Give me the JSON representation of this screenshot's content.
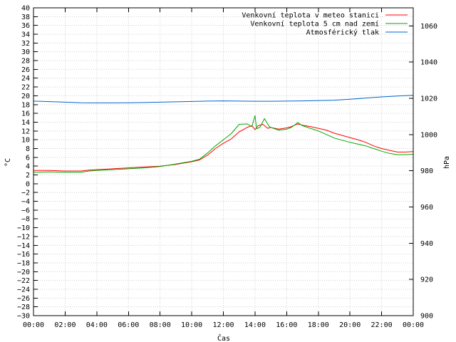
{
  "chart_data": {
    "type": "line",
    "xlabel": "Čas",
    "ylabel_left": "°C",
    "ylabel_right": "hPa",
    "grid": true,
    "legend_position": "top-right",
    "x_ticks": [
      "00:00",
      "02:00",
      "04:00",
      "06:00",
      "08:00",
      "10:00",
      "12:00",
      "14:00",
      "16:00",
      "18:00",
      "20:00",
      "22:00",
      "00:00"
    ],
    "xlim_hours": [
      0,
      24
    ],
    "ylim_left": [
      -30,
      40
    ],
    "y_step_left": 2,
    "ylim_right": [
      900,
      1070
    ],
    "y_ticks_right": [
      900,
      920,
      940,
      960,
      980,
      1000,
      1020,
      1040,
      1060
    ],
    "series": [
      {
        "name": "Venkovní teplota v meteo stanici",
        "axis": "left",
        "color": "#ff0000",
        "points": [
          [
            0,
            3.0
          ],
          [
            1,
            3.0
          ],
          [
            2,
            2.9
          ],
          [
            3,
            2.9
          ],
          [
            3.5,
            3.1
          ],
          [
            4,
            3.2
          ],
          [
            5,
            3.4
          ],
          [
            6,
            3.6
          ],
          [
            7,
            3.8
          ],
          [
            8,
            4.0
          ],
          [
            9,
            4.4
          ],
          [
            10,
            5.0
          ],
          [
            10.5,
            5.4
          ],
          [
            11,
            6.5
          ],
          [
            11.5,
            8.0
          ],
          [
            12,
            9.2
          ],
          [
            12.5,
            10.2
          ],
          [
            13,
            11.8
          ],
          [
            13.5,
            12.8
          ],
          [
            13.8,
            13.2
          ],
          [
            14,
            12.3
          ],
          [
            14.2,
            13.2
          ],
          [
            14.5,
            13.5
          ],
          [
            14.8,
            12.6
          ],
          [
            15,
            12.8
          ],
          [
            15.5,
            12.4
          ],
          [
            16,
            12.7
          ],
          [
            16.3,
            13.0
          ],
          [
            16.7,
            13.6
          ],
          [
            17,
            13.3
          ],
          [
            17.5,
            13.0
          ],
          [
            18,
            12.6
          ],
          [
            18.5,
            12.2
          ],
          [
            19,
            11.5
          ],
          [
            19.5,
            11.0
          ],
          [
            20,
            10.5
          ],
          [
            20.5,
            10.0
          ],
          [
            21,
            9.4
          ],
          [
            21.5,
            8.6
          ],
          [
            22,
            8.0
          ],
          [
            22.5,
            7.6
          ],
          [
            23,
            7.2
          ],
          [
            23.5,
            7.2
          ],
          [
            24,
            7.3
          ]
        ]
      },
      {
        "name": "Venkovní teplota 5 cm nad zemí",
        "axis": "left",
        "color": "#00aa00",
        "points": [
          [
            0,
            2.6
          ],
          [
            1,
            2.7
          ],
          [
            2,
            2.6
          ],
          [
            3,
            2.6
          ],
          [
            3.5,
            2.9
          ],
          [
            4,
            3.0
          ],
          [
            5,
            3.2
          ],
          [
            6,
            3.4
          ],
          [
            7,
            3.6
          ],
          [
            8,
            3.9
          ],
          [
            9,
            4.5
          ],
          [
            10,
            5.1
          ],
          [
            10.5,
            5.6
          ],
          [
            11,
            7.0
          ],
          [
            11.5,
            8.6
          ],
          [
            12,
            10.0
          ],
          [
            12.5,
            11.4
          ],
          [
            13,
            13.5
          ],
          [
            13.5,
            13.6
          ],
          [
            13.8,
            13.0
          ],
          [
            14,
            15.5
          ],
          [
            14.1,
            12.5
          ],
          [
            14.3,
            12.8
          ],
          [
            14.6,
            14.8
          ],
          [
            14.9,
            13.0
          ],
          [
            15,
            12.8
          ],
          [
            15.5,
            12.2
          ],
          [
            16,
            12.4
          ],
          [
            16.3,
            12.8
          ],
          [
            16.7,
            13.9
          ],
          [
            17,
            13.2
          ],
          [
            17.5,
            12.6
          ],
          [
            18,
            12.0
          ],
          [
            18.5,
            11.2
          ],
          [
            19,
            10.4
          ],
          [
            19.5,
            9.9
          ],
          [
            20,
            9.4
          ],
          [
            20.5,
            9.0
          ],
          [
            21,
            8.6
          ],
          [
            21.5,
            8.0
          ],
          [
            22,
            7.4
          ],
          [
            22.5,
            6.9
          ],
          [
            23,
            6.6
          ],
          [
            23.5,
            6.6
          ],
          [
            24,
            6.7
          ]
        ]
      },
      {
        "name": "Atmosférický tlak",
        "axis": "right",
        "color": "#0066cc",
        "points": [
          [
            0,
            1018.5
          ],
          [
            1,
            1018.2
          ],
          [
            2,
            1017.9
          ],
          [
            3,
            1017.6
          ],
          [
            4,
            1017.5
          ],
          [
            5,
            1017.5
          ],
          [
            6,
            1017.6
          ],
          [
            7,
            1017.7
          ],
          [
            8,
            1017.9
          ],
          [
            9,
            1018.1
          ],
          [
            10,
            1018.3
          ],
          [
            11,
            1018.5
          ],
          [
            12,
            1018.6
          ],
          [
            13,
            1018.5
          ],
          [
            14,
            1018.4
          ],
          [
            15,
            1018.4
          ],
          [
            16,
            1018.5
          ],
          [
            17,
            1018.6
          ],
          [
            18,
            1018.8
          ],
          [
            19,
            1019.0
          ],
          [
            20,
            1019.5
          ],
          [
            21,
            1020.2
          ],
          [
            22,
            1020.8
          ],
          [
            23,
            1021.3
          ],
          [
            24,
            1021.7
          ]
        ]
      }
    ]
  }
}
